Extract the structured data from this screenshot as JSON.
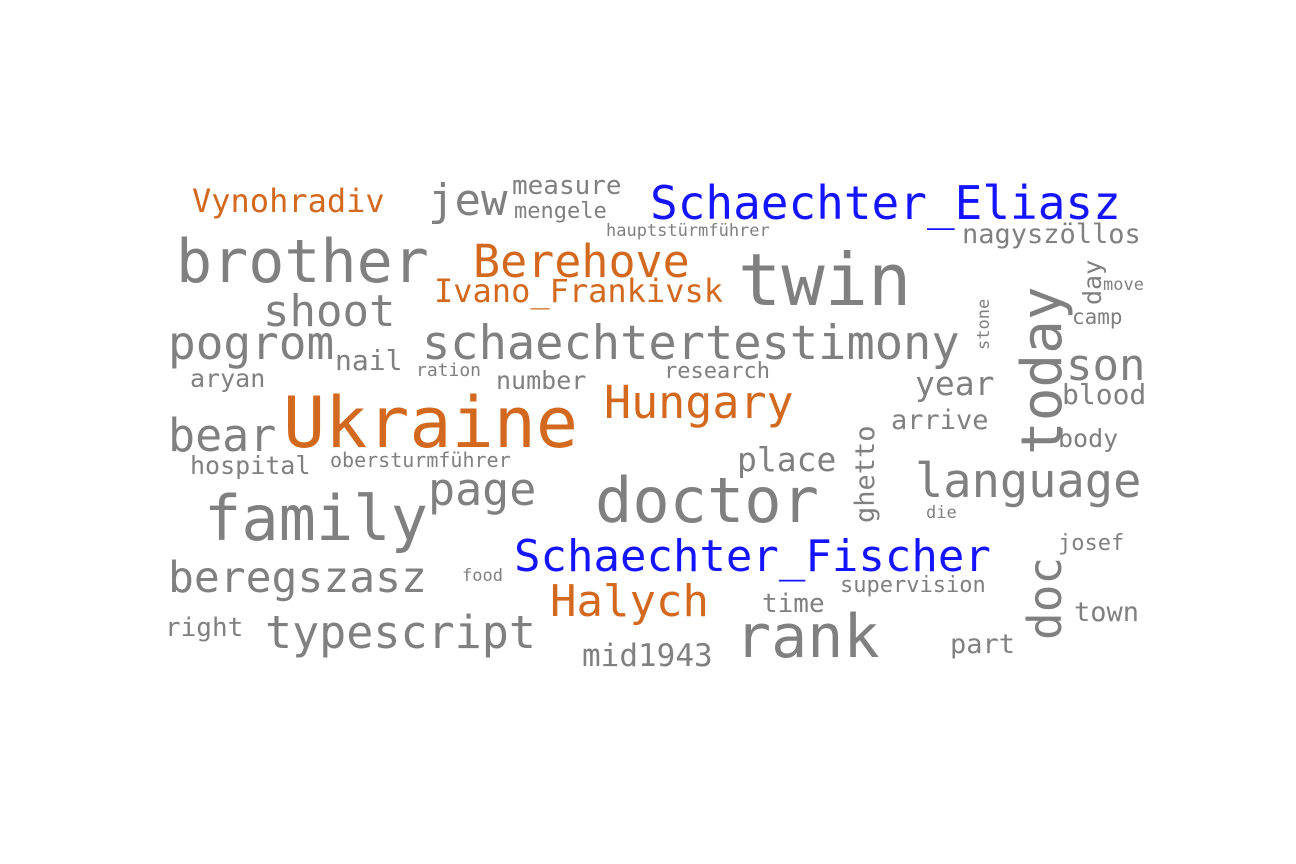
{
  "colors": {
    "gray": "#808080",
    "orange": "#d2691e",
    "blue": "#1414ff",
    "background": "#ffffff"
  },
  "words": {
    "ukraine": "Ukraine",
    "schaechter_eliasz": "Schaechter_Eliasz",
    "schaechter_fischer": "Schaechter_Fischer",
    "brother": "brother",
    "twin": "twin",
    "family": "family",
    "doctor": "doctor",
    "today": "today",
    "rank": "rank",
    "schaechtertestimony": "schaechtertestimony",
    "language": "language",
    "berehove": "Berehove",
    "hungary": "Hungary",
    "halych": "Halych",
    "ivano_frankivsk": "Ivano_Frankivsk",
    "vynohradiv": "Vynohradiv",
    "pogrom": "pogrom",
    "typescript": "typescript",
    "beregszasz": "beregszasz",
    "page": "page",
    "bear": "bear",
    "shoot": "shoot",
    "jew": "jew",
    "son": "son",
    "doc": "doc",
    "place": "place",
    "year": "year",
    "measure": "measure",
    "mengele": "mengele",
    "hauptsturmfuhrer": "hauptstürmführer",
    "nagyszollos": "nagyszöllos",
    "nail": "nail",
    "aryan": "aryan",
    "ration": "ration",
    "number": "number",
    "research": "research",
    "hospital": "hospital",
    "obersturmfuhrer": "obersturmführer",
    "mid1943": "mid1943",
    "right": "right",
    "food": "food",
    "time": "time",
    "supervision": "supervision",
    "part": "part",
    "town": "town",
    "josef": "josef",
    "die": "die",
    "body": "body",
    "blood": "blood",
    "arrive": "arrive",
    "ghetto": "ghetto",
    "camp": "camp",
    "move": "move",
    "day": "day",
    "stone": "stone"
  }
}
